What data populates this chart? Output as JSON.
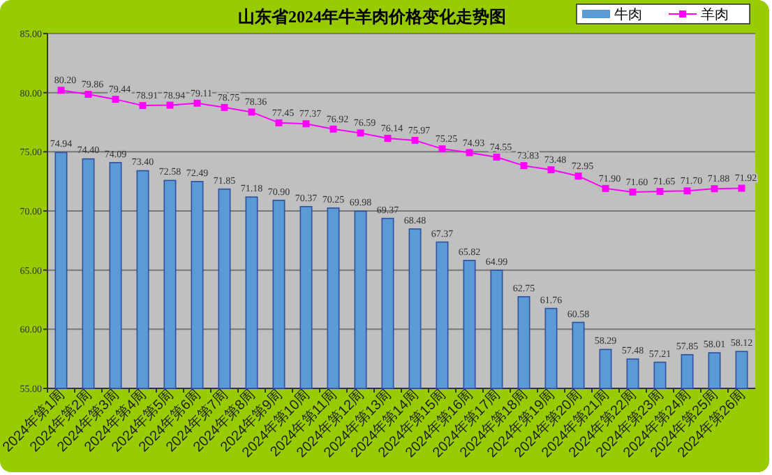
{
  "chart_data": {
    "type": "bar",
    "title": "山东省2024年牛羊肉价格变化走势图",
    "categories": [
      "2024年第1周",
      "2024年第2周",
      "2024年第3周",
      "2024年第4周",
      "2024年第5周",
      "2024年第6周",
      "2024年第7周",
      "2024年第8周",
      "2024年第9周",
      "2024年第10周",
      "2024年第11周",
      "2024年第12周",
      "2024年第13周",
      "2024年第14周",
      "2024年第15周",
      "2024年第16周",
      "2024年第17周",
      "2024年第18周",
      "2024年第19周",
      "2024年第20周",
      "2024年第21周",
      "2024年第22周",
      "2024年第23周",
      "2024年第24周",
      "2024年第25周",
      "2024年第26周"
    ],
    "series": [
      {
        "name": "牛肉",
        "color": "#5b9bd5",
        "values": [
          74.94,
          74.4,
          74.09,
          73.4,
          72.58,
          72.49,
          71.85,
          71.18,
          70.9,
          70.37,
          70.25,
          69.98,
          69.37,
          68.48,
          67.37,
          65.82,
          64.99,
          62.75,
          61.76,
          60.58,
          58.29,
          57.48,
          57.21,
          57.85,
          58.01,
          58.12
        ],
        "value_labels": [
          "74.94",
          "74.40",
          "74.09",
          "73.40",
          "72.58",
          "72.49",
          "71.85",
          "71.18",
          "70.90",
          "70.37",
          "70.25",
          "69.98",
          "69.37",
          "68.48",
          "67.37",
          "65.82",
          "64.99",
          "62.75",
          "61.76",
          "60.58",
          "58.29",
          "57.48",
          "57.21",
          "57.85",
          "58.01",
          "58.12"
        ]
      },
      {
        "name": "羊肉",
        "type": "line",
        "color": "#ff00ff",
        "marker": "square",
        "values": [
          80.2,
          79.86,
          79.44,
          78.91,
          78.94,
          79.11,
          78.75,
          78.36,
          77.45,
          77.37,
          76.92,
          76.59,
          76.14,
          75.97,
          75.25,
          74.93,
          74.55,
          73.83,
          73.48,
          72.95,
          71.9,
          71.6,
          71.65,
          71.7,
          71.88,
          71.92
        ],
        "value_labels": [
          "80.20",
          "79.86",
          "79.44",
          "78.91",
          "78.94",
          "79.11",
          "78.75",
          "78.36",
          "77.45",
          "77.37",
          "76.92",
          "76.59",
          "76.14",
          "75.97",
          "75.25",
          "74.93",
          "74.55",
          "73.83",
          "73.48",
          "72.95",
          "71.90",
          "71.60",
          "71.65",
          "71.70",
          "71.88",
          "71.92"
        ]
      }
    ],
    "ylim": [
      55,
      85
    ],
    "yticks": [
      {
        "value": 55,
        "label": "55.00"
      },
      {
        "value": 60,
        "label": "60.00"
      },
      {
        "value": 65,
        "label": "65.00"
      },
      {
        "value": 70,
        "label": "70.00"
      },
      {
        "value": 75,
        "label": "75.00"
      },
      {
        "value": 80,
        "label": "80.00"
      },
      {
        "value": 85,
        "label": "85.00"
      }
    ],
    "grid": "y",
    "legend": "top right"
  }
}
